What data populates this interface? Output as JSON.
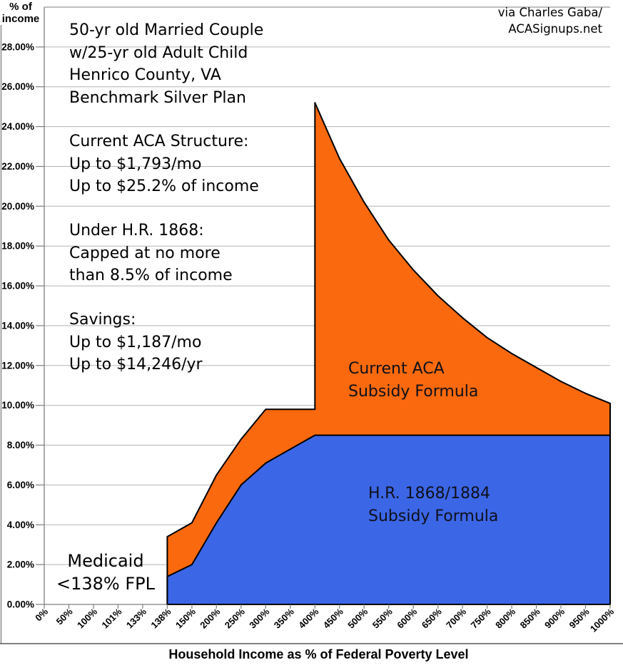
{
  "credit": {
    "lines": [
      "via Charles Gaba/",
      "ACASignups.net"
    ]
  },
  "annotations": {
    "household": {
      "lines": [
        "50-yr old Married Couple",
        "w/25-yr old Adult Child",
        "Henrico County, VA",
        "Benchmark Silver Plan"
      ]
    },
    "current_aca": {
      "lines": [
        "Current ACA Structure:",
        "Up to $1,793/mo",
        "Up to $25.2% of income"
      ]
    },
    "hr1868": {
      "lines": [
        "Under H.R. 1868:",
        "Capped at no more",
        "than 8.5% of income"
      ]
    },
    "savings": {
      "lines": [
        "Savings:",
        "Up to $1,187/mo",
        "Up to $14,246/yr"
      ]
    },
    "medicaid": {
      "lines": [
        "Medicaid",
        "<138% FPL"
      ]
    }
  },
  "area_labels": {
    "current_aca": {
      "lines": [
        "Current ACA",
        "Subsidy Formula"
      ]
    },
    "hr1868": {
      "lines": [
        "H.R. 1868/1884",
        "Subsidy Formula"
      ]
    }
  },
  "chart_data": {
    "type": "area",
    "title": "",
    "xlabel": "Household Income as % of Federal Poverty Level",
    "ylabel_lines": [
      "% of",
      "income"
    ],
    "ylim": [
      0,
      30
    ],
    "grid": true,
    "legend_position": "labels-inside-areas",
    "x_categories": [
      "0%",
      "50%",
      "100%",
      "101%",
      "133%",
      "138%",
      "150%",
      "200%",
      "250%",
      "300%",
      "350%",
      "400%",
      "450%",
      "500%",
      "550%",
      "600%",
      "650%",
      "700%",
      "750%",
      "800%",
      "850%",
      "900%",
      "950%",
      "1000%"
    ],
    "y_tick_values": [
      0,
      2,
      4,
      6,
      8,
      10,
      12,
      14,
      16,
      18,
      20,
      22,
      24,
      26,
      28
    ],
    "y_tick_labels": [
      "0.00%",
      "2.00%",
      "4.00%",
      "6.00%",
      "8.00%",
      "10.00%",
      "12.00%",
      "14.00%",
      "16.00%",
      "18.00%",
      "20.00%",
      "22.00%",
      "24.00%",
      "26.00%",
      "28.00%"
    ],
    "series": [
      {
        "name": "Current ACA Subsidy Formula",
        "color": "#FA690D",
        "points": [
          [
            "138%",
            3.4
          ],
          [
            "150%",
            4.1
          ],
          [
            "200%",
            6.5
          ],
          [
            "250%",
            8.3
          ],
          [
            "300%",
            9.8
          ],
          [
            "350%",
            9.8
          ],
          [
            "400%",
            9.8
          ],
          [
            "400%",
            25.2
          ],
          [
            "450%",
            22.4
          ],
          [
            "500%",
            20.2
          ],
          [
            "550%",
            18.3
          ],
          [
            "600%",
            16.8
          ],
          [
            "650%",
            15.5
          ],
          [
            "700%",
            14.4
          ],
          [
            "750%",
            13.4
          ],
          [
            "800%",
            12.6
          ],
          [
            "850%",
            11.9
          ],
          [
            "900%",
            11.2
          ],
          [
            "950%",
            10.6
          ],
          [
            "1000%",
            10.1
          ]
        ]
      },
      {
        "name": "H.R. 1868/1884 Subsidy Formula",
        "color": "#3B66E6",
        "points": [
          [
            "138%",
            1.4
          ],
          [
            "150%",
            2.0
          ],
          [
            "200%",
            4.1
          ],
          [
            "250%",
            6.0
          ],
          [
            "300%",
            7.1
          ],
          [
            "350%",
            7.8
          ],
          [
            "400%",
            8.5
          ],
          [
            "450%",
            8.5
          ],
          [
            "500%",
            8.5
          ],
          [
            "550%",
            8.5
          ],
          [
            "600%",
            8.5
          ],
          [
            "650%",
            8.5
          ],
          [
            "700%",
            8.5
          ],
          [
            "750%",
            8.5
          ],
          [
            "800%",
            8.5
          ],
          [
            "850%",
            8.5
          ],
          [
            "900%",
            8.5
          ],
          [
            "950%",
            8.5
          ],
          [
            "1000%",
            8.5
          ]
        ]
      }
    ],
    "colors": {
      "area_outline": "#000000",
      "gridline": "#B3B3B3",
      "axis": "#7F7F7F",
      "frame": "#8C8C8C",
      "frame_bottom": "#595959",
      "tick_text": "#000000"
    }
  }
}
